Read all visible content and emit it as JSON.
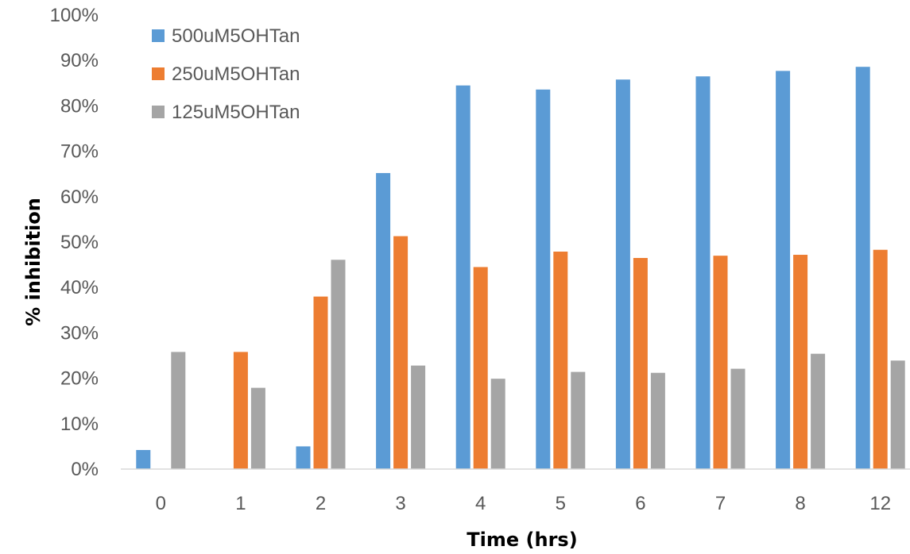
{
  "chart_data": {
    "type": "bar",
    "xlabel": "Time (hrs)",
    "ylabel": "% inhibition",
    "categories": [
      "0",
      "1",
      "2",
      "3",
      "4",
      "5",
      "6",
      "7",
      "8",
      "12"
    ],
    "ylim": [
      0,
      100
    ],
    "yticks": [
      "0%",
      "10%",
      "20%",
      "30%",
      "40%",
      "50%",
      "60%",
      "70%",
      "80%",
      "90%",
      "100%"
    ],
    "grid": false,
    "legend": "top-left",
    "series": [
      {
        "name": "500uM5OHTan",
        "color": "#5B9BD5",
        "values": [
          4.2,
          0,
          5,
          65.2,
          84.5,
          83.6,
          85.8,
          86.5,
          87.7,
          88.6
        ]
      },
      {
        "name": "250uM5OHTan",
        "color": "#ED7D31",
        "values": [
          0,
          25.8,
          38,
          51.3,
          44.5,
          47.9,
          46.5,
          47,
          47.2,
          48.3
        ]
      },
      {
        "name": "125uM5OHTan",
        "color": "#A5A5A5",
        "values": [
          25.8,
          17.9,
          46.1,
          22.8,
          19.9,
          21.4,
          21.2,
          22.1,
          25.4,
          23.9
        ]
      }
    ]
  }
}
